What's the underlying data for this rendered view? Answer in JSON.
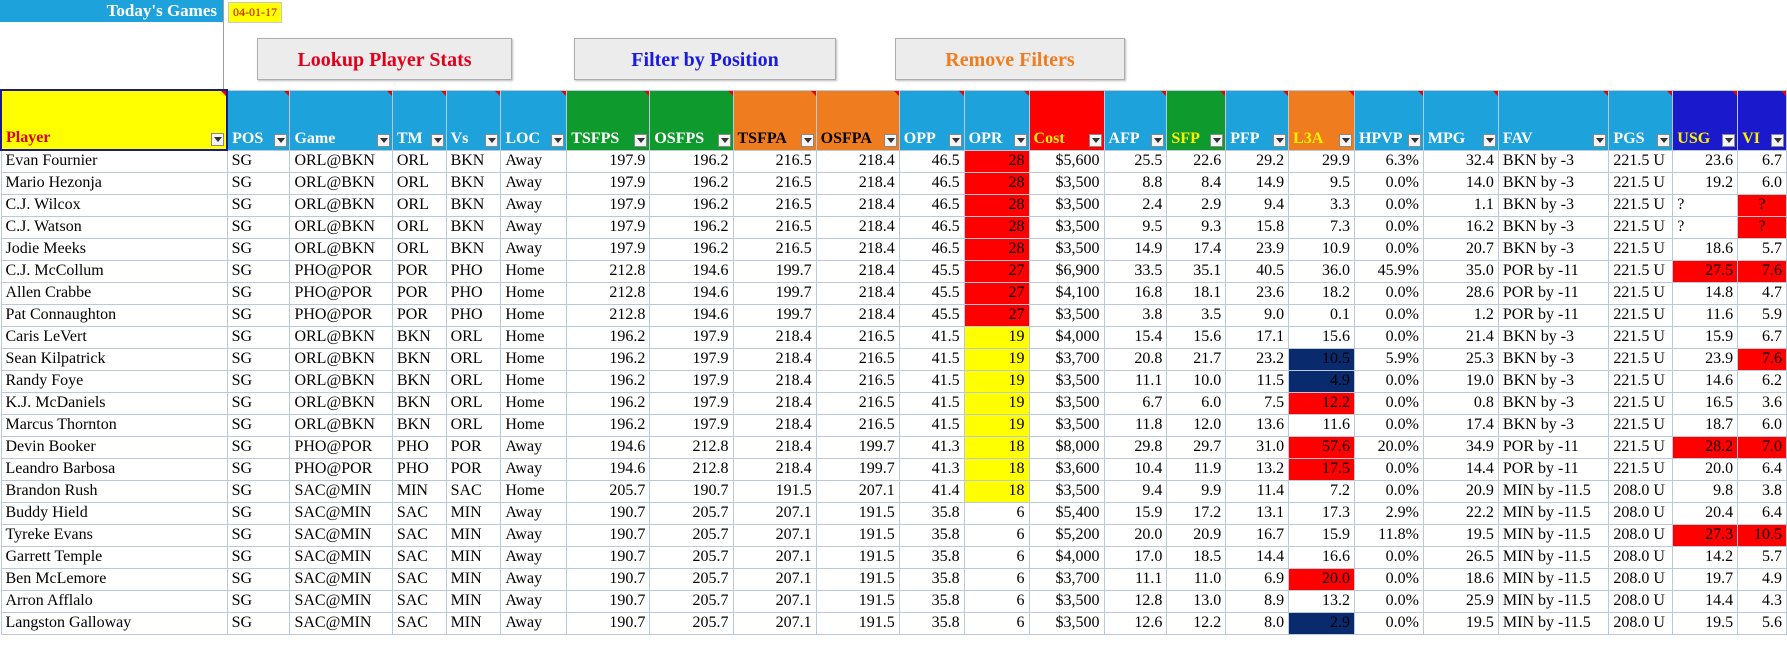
{
  "header": {
    "title": "Today's Games",
    "date": "04-01-17"
  },
  "buttons": {
    "lookup": "Lookup Player Stats",
    "filter": "Filter by Position",
    "remove": "Remove Filters"
  },
  "colors": {
    "header_blue": "#1ea2dc",
    "green": "#0f9a2e",
    "orange": "#f07c20",
    "red": "#ff0000",
    "navy": "#0a2a6e",
    "yellow": "#ffff00",
    "purple": "#1a1acc"
  },
  "columns": [
    {
      "key": "player",
      "label": "Player",
      "bg": "#ffff00",
      "color": "#e00000"
    },
    {
      "key": "pos",
      "label": "POS",
      "bg": "#1ea2dc",
      "color": "#ffffff",
      "sorted": true
    },
    {
      "key": "game",
      "label": "Game",
      "bg": "#1ea2dc",
      "color": "#ffffff"
    },
    {
      "key": "tm",
      "label": "TM",
      "bg": "#1ea2dc",
      "color": "#ffffff"
    },
    {
      "key": "vs",
      "label": "Vs",
      "bg": "#1ea2dc",
      "color": "#ffffff"
    },
    {
      "key": "loc",
      "label": "LOC",
      "bg": "#1ea2dc",
      "color": "#ffffff"
    },
    {
      "key": "tsfps",
      "label": "TSFPS",
      "bg": "#0f9a2e",
      "color": "#ffffff"
    },
    {
      "key": "osfps",
      "label": "OSFPS",
      "bg": "#0f9a2e",
      "color": "#ffffff"
    },
    {
      "key": "tsfpa",
      "label": "TSFPA",
      "bg": "#f07c20",
      "color": "#000000"
    },
    {
      "key": "osfpa",
      "label": "OSFPA",
      "bg": "#f07c20",
      "color": "#000000"
    },
    {
      "key": "opp",
      "label": "OPP",
      "bg": "#1ea2dc",
      "color": "#ffffff"
    },
    {
      "key": "opr",
      "label": "OPR",
      "bg": "#1ea2dc",
      "color": "#ffffff"
    },
    {
      "key": "cost",
      "label": "Cost",
      "bg": "#ff0000",
      "color": "#fff200"
    },
    {
      "key": "afp",
      "label": "AFP",
      "bg": "#1ea2dc",
      "color": "#ffffff"
    },
    {
      "key": "sfp",
      "label": "SFP",
      "bg": "#0f9a2e",
      "color": "#fff200"
    },
    {
      "key": "pfp",
      "label": "PFP",
      "bg": "#1ea2dc",
      "color": "#ffffff"
    },
    {
      "key": "l3a",
      "label": "L3A",
      "bg": "#f07c20",
      "color": "#fff200"
    },
    {
      "key": "hpvp",
      "label": "HPVP",
      "bg": "#1ea2dc",
      "color": "#ffffff"
    },
    {
      "key": "mpg",
      "label": "MPG",
      "bg": "#1ea2dc",
      "color": "#ffffff"
    },
    {
      "key": "fav",
      "label": "FAV",
      "bg": "#1ea2dc",
      "color": "#ffffff"
    },
    {
      "key": "pgs",
      "label": "PGS",
      "bg": "#1ea2dc",
      "color": "#ffffff"
    },
    {
      "key": "usg",
      "label": "USG",
      "bg": "#1a1acc",
      "color": "#fff200"
    },
    {
      "key": "vi",
      "label": "VI",
      "bg": "#1a1acc",
      "color": "#fff200"
    }
  ],
  "rows": [
    {
      "player": "Evan Fournier",
      "pos": "SG",
      "game": "ORL@BKN",
      "tm": "ORL",
      "vs": "BKN",
      "loc": "Away",
      "tsfps": "197.9",
      "osfps": "196.2",
      "tsfpa": "216.5",
      "osfpa": "218.4",
      "opp": "46.5",
      "opr": "28",
      "cost": "$5,600",
      "afp": "25.5",
      "sfp": "22.6",
      "pfp": "29.2",
      "l3a": "29.9",
      "hpvp": "6.3%",
      "mpg": "32.4",
      "fav": "BKN by -3",
      "pgs": "221.5 U",
      "usg": "23.6",
      "vi": "6.7",
      "opr_hl": "red"
    },
    {
      "player": "Mario Hezonja",
      "pos": "SG",
      "game": "ORL@BKN",
      "tm": "ORL",
      "vs": "BKN",
      "loc": "Away",
      "tsfps": "197.9",
      "osfps": "196.2",
      "tsfpa": "216.5",
      "osfpa": "218.4",
      "opp": "46.5",
      "opr": "28",
      "cost": "$3,500",
      "afp": "8.8",
      "sfp": "8.4",
      "pfp": "14.9",
      "l3a": "9.5",
      "hpvp": "0.0%",
      "mpg": "14.0",
      "fav": "BKN by -3",
      "pgs": "221.5 U",
      "usg": "19.2",
      "vi": "6.0",
      "opr_hl": "red"
    },
    {
      "player": "C.J. Wilcox",
      "pos": "SG",
      "game": "ORL@BKN",
      "tm": "ORL",
      "vs": "BKN",
      "loc": "Away",
      "tsfps": "197.9",
      "osfps": "196.2",
      "tsfpa": "216.5",
      "osfpa": "218.4",
      "opp": "46.5",
      "opr": "28",
      "cost": "$3,500",
      "afp": "2.4",
      "sfp": "2.9",
      "pfp": "9.4",
      "l3a": "3.3",
      "hpvp": "0.0%",
      "mpg": "1.1",
      "fav": "BKN by -3",
      "pgs": "221.5 U",
      "usg": "?",
      "vi": "?",
      "opr_hl": "red",
      "vi_hl": "redq",
      "usg_left": true
    },
    {
      "player": "C.J. Watson",
      "pos": "SG",
      "game": "ORL@BKN",
      "tm": "ORL",
      "vs": "BKN",
      "loc": "Away",
      "tsfps": "197.9",
      "osfps": "196.2",
      "tsfpa": "216.5",
      "osfpa": "218.4",
      "opp": "46.5",
      "opr": "28",
      "cost": "$3,500",
      "afp": "9.5",
      "sfp": "9.3",
      "pfp": "15.8",
      "l3a": "7.3",
      "hpvp": "0.0%",
      "mpg": "16.2",
      "fav": "BKN by -3",
      "pgs": "221.5 U",
      "usg": "?",
      "vi": "?",
      "opr_hl": "red",
      "vi_hl": "redq",
      "usg_left": true
    },
    {
      "player": "Jodie Meeks",
      "pos": "SG",
      "game": "ORL@BKN",
      "tm": "ORL",
      "vs": "BKN",
      "loc": "Away",
      "tsfps": "197.9",
      "osfps": "196.2",
      "tsfpa": "216.5",
      "osfpa": "218.4",
      "opp": "46.5",
      "opr": "28",
      "cost": "$3,500",
      "afp": "14.9",
      "sfp": "17.4",
      "pfp": "23.9",
      "l3a": "10.9",
      "hpvp": "0.0%",
      "mpg": "20.7",
      "fav": "BKN by -3",
      "pgs": "221.5 U",
      "usg": "18.6",
      "vi": "5.7",
      "opr_hl": "red"
    },
    {
      "player": "C.J. McCollum",
      "pos": "SG",
      "game": "PHO@POR",
      "tm": "POR",
      "vs": "PHO",
      "loc": "Home",
      "tsfps": "212.8",
      "osfps": "194.6",
      "tsfpa": "199.7",
      "osfpa": "218.4",
      "opp": "45.5",
      "opr": "27",
      "cost": "$6,900",
      "afp": "33.5",
      "sfp": "35.1",
      "pfp": "40.5",
      "l3a": "36.0",
      "hpvp": "45.9%",
      "mpg": "35.0",
      "fav": "POR by -11",
      "pgs": "221.5 U",
      "usg": "27.5",
      "vi": "7.6",
      "opr_hl": "red",
      "usg_hl": "red",
      "vi_hl": "red"
    },
    {
      "player": "Allen Crabbe",
      "pos": "SG",
      "game": "PHO@POR",
      "tm": "POR",
      "vs": "PHO",
      "loc": "Home",
      "tsfps": "212.8",
      "osfps": "194.6",
      "tsfpa": "199.7",
      "osfpa": "218.4",
      "opp": "45.5",
      "opr": "27",
      "cost": "$4,100",
      "afp": "16.8",
      "sfp": "18.1",
      "pfp": "23.6",
      "l3a": "18.2",
      "hpvp": "0.0%",
      "mpg": "28.6",
      "fav": "POR by -11",
      "pgs": "221.5 U",
      "usg": "14.8",
      "vi": "4.7",
      "opr_hl": "red"
    },
    {
      "player": "Pat Connaughton",
      "pos": "SG",
      "game": "PHO@POR",
      "tm": "POR",
      "vs": "PHO",
      "loc": "Home",
      "tsfps": "212.8",
      "osfps": "194.6",
      "tsfpa": "199.7",
      "osfpa": "218.4",
      "opp": "45.5",
      "opr": "27",
      "cost": "$3,500",
      "afp": "3.8",
      "sfp": "3.5",
      "pfp": "9.0",
      "l3a": "0.1",
      "hpvp": "0.0%",
      "mpg": "1.2",
      "fav": "POR by -11",
      "pgs": "221.5 U",
      "usg": "11.6",
      "vi": "5.9",
      "opr_hl": "red"
    },
    {
      "player": "Caris LeVert",
      "pos": "SG",
      "game": "ORL@BKN",
      "tm": "BKN",
      "vs": "ORL",
      "loc": "Home",
      "tsfps": "196.2",
      "osfps": "197.9",
      "tsfpa": "218.4",
      "osfpa": "216.5",
      "opp": "41.5",
      "opr": "19",
      "cost": "$4,000",
      "afp": "15.4",
      "sfp": "15.6",
      "pfp": "17.1",
      "l3a": "15.6",
      "hpvp": "0.0%",
      "mpg": "21.4",
      "fav": "BKN by -3",
      "pgs": "221.5 U",
      "usg": "15.9",
      "vi": "6.7",
      "opr_hl": "yel"
    },
    {
      "player": "Sean Kilpatrick",
      "pos": "SG",
      "game": "ORL@BKN",
      "tm": "BKN",
      "vs": "ORL",
      "loc": "Home",
      "tsfps": "196.2",
      "osfps": "197.9",
      "tsfpa": "218.4",
      "osfpa": "216.5",
      "opp": "41.5",
      "opr": "19",
      "cost": "$3,700",
      "afp": "20.8",
      "sfp": "21.7",
      "pfp": "23.2",
      "l3a": "10.5",
      "hpvp": "5.9%",
      "mpg": "25.3",
      "fav": "BKN by -3",
      "pgs": "221.5 U",
      "usg": "23.9",
      "vi": "7.6",
      "opr_hl": "yel",
      "l3a_hl": "navy",
      "vi_hl": "red"
    },
    {
      "player": "Randy Foye",
      "pos": "SG",
      "game": "ORL@BKN",
      "tm": "BKN",
      "vs": "ORL",
      "loc": "Home",
      "tsfps": "196.2",
      "osfps": "197.9",
      "tsfpa": "218.4",
      "osfpa": "216.5",
      "opp": "41.5",
      "opr": "19",
      "cost": "$3,500",
      "afp": "11.1",
      "sfp": "10.0",
      "pfp": "11.5",
      "l3a": "4.9",
      "hpvp": "0.0%",
      "mpg": "19.0",
      "fav": "BKN by -3",
      "pgs": "221.5 U",
      "usg": "14.6",
      "vi": "6.2",
      "opr_hl": "yel",
      "l3a_hl": "navy"
    },
    {
      "player": "K.J. McDaniels",
      "pos": "SG",
      "game": "ORL@BKN",
      "tm": "BKN",
      "vs": "ORL",
      "loc": "Home",
      "tsfps": "196.2",
      "osfps": "197.9",
      "tsfpa": "218.4",
      "osfpa": "216.5",
      "opp": "41.5",
      "opr": "19",
      "cost": "$3,500",
      "afp": "6.7",
      "sfp": "6.0",
      "pfp": "7.5",
      "l3a": "12.2",
      "hpvp": "0.0%",
      "mpg": "0.8",
      "fav": "BKN by -3",
      "pgs": "221.5 U",
      "usg": "16.5",
      "vi": "3.6",
      "opr_hl": "yel",
      "l3a_hl": "red"
    },
    {
      "player": "Marcus Thornton",
      "pos": "SG",
      "game": "ORL@BKN",
      "tm": "BKN",
      "vs": "ORL",
      "loc": "Home",
      "tsfps": "196.2",
      "osfps": "197.9",
      "tsfpa": "218.4",
      "osfpa": "216.5",
      "opp": "41.5",
      "opr": "19",
      "cost": "$3,500",
      "afp": "11.8",
      "sfp": "12.0",
      "pfp": "13.6",
      "l3a": "11.6",
      "hpvp": "0.0%",
      "mpg": "17.4",
      "fav": "BKN by -3",
      "pgs": "221.5 U",
      "usg": "18.7",
      "vi": "6.0",
      "opr_hl": "yel"
    },
    {
      "player": "Devin Booker",
      "pos": "SG",
      "game": "PHO@POR",
      "tm": "PHO",
      "vs": "POR",
      "loc": "Away",
      "tsfps": "194.6",
      "osfps": "212.8",
      "tsfpa": "218.4",
      "osfpa": "199.7",
      "opp": "41.3",
      "opr": "18",
      "cost": "$8,000",
      "afp": "29.8",
      "sfp": "29.7",
      "pfp": "31.0",
      "l3a": "57.6",
      "hpvp": "20.0%",
      "mpg": "34.9",
      "fav": "POR by -11",
      "pgs": "221.5 U",
      "usg": "28.2",
      "vi": "7.0",
      "opr_hl": "yel",
      "l3a_hl": "red",
      "usg_hl": "red",
      "vi_hl": "red"
    },
    {
      "player": "Leandro Barbosa",
      "pos": "SG",
      "game": "PHO@POR",
      "tm": "PHO",
      "vs": "POR",
      "loc": "Away",
      "tsfps": "194.6",
      "osfps": "212.8",
      "tsfpa": "218.4",
      "osfpa": "199.7",
      "opp": "41.3",
      "opr": "18",
      "cost": "$3,600",
      "afp": "10.4",
      "sfp": "11.9",
      "pfp": "13.2",
      "l3a": "17.5",
      "hpvp": "0.0%",
      "mpg": "14.4",
      "fav": "POR by -11",
      "pgs": "221.5 U",
      "usg": "20.0",
      "vi": "6.4",
      "opr_hl": "yel",
      "l3a_hl": "red"
    },
    {
      "player": "Brandon Rush",
      "pos": "SG",
      "game": "SAC@MIN",
      "tm": "MIN",
      "vs": "SAC",
      "loc": "Home",
      "tsfps": "205.7",
      "osfps": "190.7",
      "tsfpa": "191.5",
      "osfpa": "207.1",
      "opp": "41.4",
      "opr": "18",
      "cost": "$3,500",
      "afp": "9.4",
      "sfp": "9.9",
      "pfp": "11.4",
      "l3a": "7.2",
      "hpvp": "0.0%",
      "mpg": "20.9",
      "fav": "MIN by -11.5",
      "pgs": "208.0 U",
      "usg": "9.8",
      "vi": "3.8",
      "opr_hl": "yel"
    },
    {
      "player": "Buddy Hield",
      "pos": "SG",
      "game": "SAC@MIN",
      "tm": "SAC",
      "vs": "MIN",
      "loc": "Away",
      "tsfps": "190.7",
      "osfps": "205.7",
      "tsfpa": "207.1",
      "osfpa": "191.5",
      "opp": "35.8",
      "opr": "6",
      "cost": "$5,400",
      "afp": "15.9",
      "sfp": "17.2",
      "pfp": "13.1",
      "l3a": "17.3",
      "hpvp": "2.9%",
      "mpg": "22.2",
      "fav": "MIN by -11.5",
      "pgs": "208.0 U",
      "usg": "20.4",
      "vi": "6.4"
    },
    {
      "player": "Tyreke Evans",
      "pos": "SG",
      "game": "SAC@MIN",
      "tm": "SAC",
      "vs": "MIN",
      "loc": "Away",
      "tsfps": "190.7",
      "osfps": "205.7",
      "tsfpa": "207.1",
      "osfpa": "191.5",
      "opp": "35.8",
      "opr": "6",
      "cost": "$5,200",
      "afp": "20.0",
      "sfp": "20.9",
      "pfp": "16.7",
      "l3a": "15.9",
      "hpvp": "11.8%",
      "mpg": "19.5",
      "fav": "MIN by -11.5",
      "pgs": "208.0 U",
      "usg": "27.3",
      "vi": "10.5",
      "usg_hl": "red",
      "vi_hl": "red"
    },
    {
      "player": "Garrett Temple",
      "pos": "SG",
      "game": "SAC@MIN",
      "tm": "SAC",
      "vs": "MIN",
      "loc": "Away",
      "tsfps": "190.7",
      "osfps": "205.7",
      "tsfpa": "207.1",
      "osfpa": "191.5",
      "opp": "35.8",
      "opr": "6",
      "cost": "$4,000",
      "afp": "17.0",
      "sfp": "18.5",
      "pfp": "14.4",
      "l3a": "16.6",
      "hpvp": "0.0%",
      "mpg": "26.5",
      "fav": "MIN by -11.5",
      "pgs": "208.0 U",
      "usg": "14.2",
      "vi": "5.7"
    },
    {
      "player": "Ben McLemore",
      "pos": "SG",
      "game": "SAC@MIN",
      "tm": "SAC",
      "vs": "MIN",
      "loc": "Away",
      "tsfps": "190.7",
      "osfps": "205.7",
      "tsfpa": "207.1",
      "osfpa": "191.5",
      "opp": "35.8",
      "opr": "6",
      "cost": "$3,700",
      "afp": "11.1",
      "sfp": "11.0",
      "pfp": "6.9",
      "l3a": "20.0",
      "hpvp": "0.0%",
      "mpg": "18.6",
      "fav": "MIN by -11.5",
      "pgs": "208.0 U",
      "usg": "19.7",
      "vi": "4.9",
      "l3a_hl": "red"
    },
    {
      "player": "Arron Afflalo",
      "pos": "SG",
      "game": "SAC@MIN",
      "tm": "SAC",
      "vs": "MIN",
      "loc": "Away",
      "tsfps": "190.7",
      "osfps": "205.7",
      "tsfpa": "207.1",
      "osfpa": "191.5",
      "opp": "35.8",
      "opr": "6",
      "cost": "$3,500",
      "afp": "12.8",
      "sfp": "13.0",
      "pfp": "8.9",
      "l3a": "13.2",
      "hpvp": "0.0%",
      "mpg": "25.9",
      "fav": "MIN by -11.5",
      "pgs": "208.0 U",
      "usg": "14.4",
      "vi": "4.3"
    },
    {
      "player": "Langston Galloway",
      "pos": "SG",
      "game": "SAC@MIN",
      "tm": "SAC",
      "vs": "MIN",
      "loc": "Away",
      "tsfps": "190.7",
      "osfps": "205.7",
      "tsfpa": "207.1",
      "osfpa": "191.5",
      "opp": "35.8",
      "opr": "6",
      "cost": "$3,500",
      "afp": "12.6",
      "sfp": "12.2",
      "pfp": "8.0",
      "l3a": "2.9",
      "hpvp": "0.0%",
      "mpg": "19.5",
      "fav": "MIN by -11.5",
      "pgs": "208.0 U",
      "usg": "19.5",
      "vi": "5.6",
      "l3a_hl": "navy"
    }
  ]
}
